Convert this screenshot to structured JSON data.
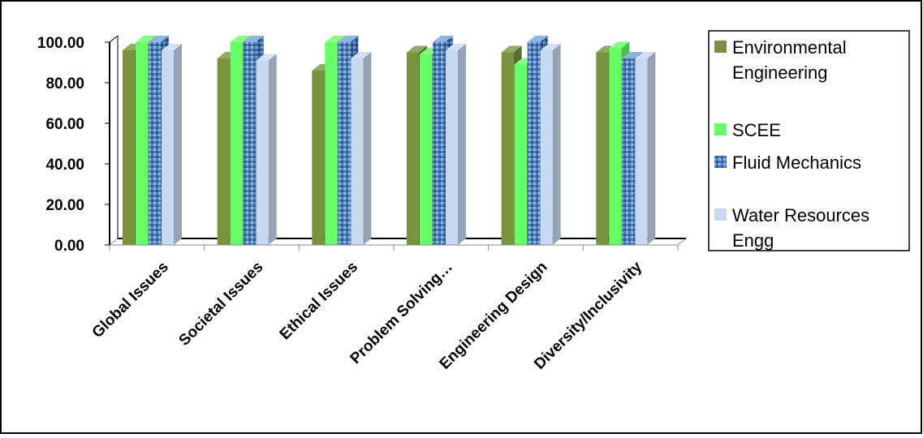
{
  "chart_data": {
    "type": "bar",
    "title": "",
    "xlabel": "",
    "ylabel": "",
    "categories": [
      "Global Issues",
      "Societal Issues",
      "Ethical Issues",
      "Problem Solving…",
      "Engineering Design",
      "Diversity/Inclusivity"
    ],
    "ylim": [
      0,
      100
    ],
    "yticks": [
      "0.00",
      "20.00",
      "40.00",
      "60.00",
      "80.00",
      "100.00"
    ],
    "grid": false,
    "legend_position": "right",
    "series": [
      {
        "name": "Environmental Engineering",
        "color": "#77933C",
        "pattern": "solid",
        "values": [
          96,
          92,
          86,
          95,
          95,
          95
        ]
      },
      {
        "name": "SCEE",
        "color": "#66FF66",
        "pattern": "solid",
        "values": [
          100,
          100,
          100,
          94,
          89,
          97
        ]
      },
      {
        "name": "Fluid Mechanics",
        "color": "#4F81BD",
        "pattern": "textured",
        "values": [
          100,
          100,
          100,
          100,
          100,
          92
        ]
      },
      {
        "name": "Water Resources Engg",
        "color": "#C6D9F1",
        "pattern": "solid",
        "values": [
          96,
          91,
          92,
          96,
          96,
          92
        ]
      }
    ]
  }
}
